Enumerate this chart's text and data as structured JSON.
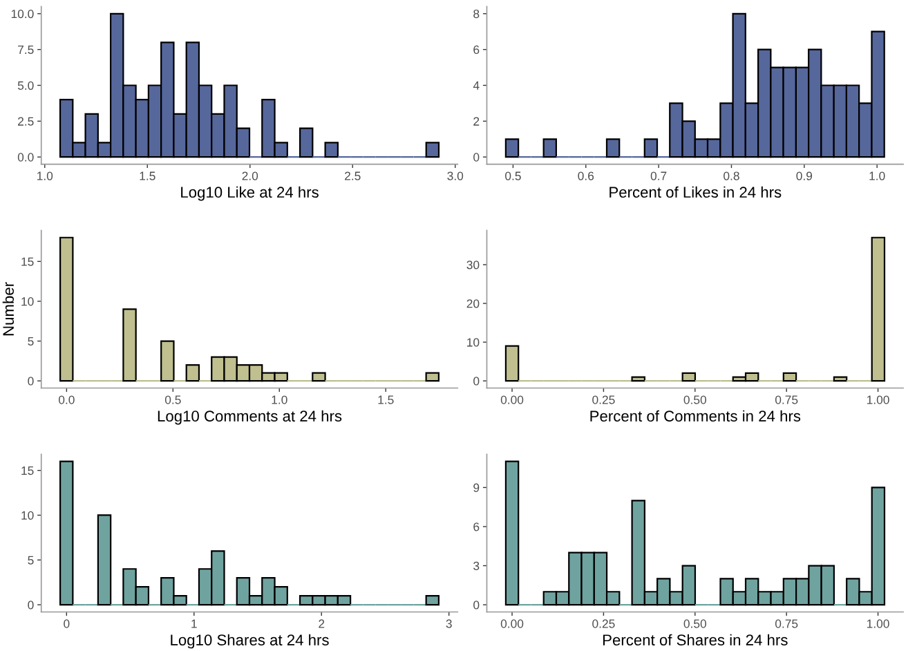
{
  "chart_data": [
    {
      "type": "histogram",
      "xlabel": "Log10 Like at 24 hrs",
      "color": "#56679c",
      "bins": [
        1.075,
        1.1365,
        1.198,
        1.2595,
        1.321,
        1.3825,
        1.444,
        1.5055,
        1.567,
        1.6285,
        1.69,
        1.7515,
        1.813,
        1.8745,
        1.936,
        1.9975,
        2.059,
        2.1205,
        2.182,
        2.2435,
        2.305,
        2.3665,
        2.428,
        2.4895,
        2.551,
        2.6125,
        2.674,
        2.7355,
        2.797,
        2.8585,
        2.92
      ],
      "values": [
        4,
        1,
        3,
        1,
        10,
        5,
        4,
        5,
        8,
        3,
        8,
        5,
        3,
        5,
        2,
        0,
        4,
        1,
        0,
        2,
        0,
        1,
        0,
        0,
        0,
        0,
        0,
        0,
        0,
        1
      ],
      "xlim": [
        0.983,
        3.012
      ],
      "xticks": [
        {
          "value": 1,
          "label": "1.0"
        },
        {
          "value": 1.5,
          "label": "1.5"
        },
        {
          "value": 2,
          "label": "2.0"
        },
        {
          "value": 2.5,
          "label": "2.5"
        },
        {
          "value": 3,
          "label": "3.0"
        }
      ],
      "ylim": [
        -0.5,
        10.5
      ],
      "yticks": [
        {
          "value": 0,
          "label": "0.0"
        },
        {
          "value": 2.5,
          "label": "2.5"
        },
        {
          "value": 5,
          "label": "5.0"
        },
        {
          "value": 7.5,
          "label": "7.5"
        },
        {
          "value": 10,
          "label": "10.0"
        }
      ]
    },
    {
      "type": "histogram",
      "xlabel": "Percent of Likes in 24 hrs",
      "color": "#56679c",
      "bins": [
        0.49,
        0.5073,
        0.5247,
        0.542,
        0.5593,
        0.5767,
        0.594,
        0.6113,
        0.6287,
        0.646,
        0.6633,
        0.6807,
        0.698,
        0.7153,
        0.7327,
        0.75,
        0.7673,
        0.7847,
        0.802,
        0.8193,
        0.8367,
        0.854,
        0.8713,
        0.8887,
        0.906,
        0.9233,
        0.9407,
        0.958,
        0.9753,
        0.9927,
        1.01
      ],
      "values": [
        1,
        0,
        0,
        1,
        0,
        0,
        0,
        0,
        1,
        0,
        0,
        1,
        0,
        3,
        2,
        1,
        1,
        3,
        8,
        3,
        6,
        5,
        5,
        5,
        6,
        4,
        4,
        4,
        3,
        7
      ],
      "xlim": [
        0.464,
        1.036
      ],
      "xticks": [
        0.5,
        0.6,
        0.7,
        0.8,
        0.9,
        {
          "value": 1,
          "label": "1.0"
        }
      ],
      "ylim": [
        -0.4,
        8.4
      ],
      "yticks": [
        0,
        2,
        4,
        6,
        8
      ]
    },
    {
      "type": "histogram",
      "xlabel": "Log10 Comments at 24 hrs",
      "ylabel": "Number",
      "color": "#bfbf90",
      "bins": [
        -0.03,
        0.0293,
        0.0886,
        0.1479,
        0.2072,
        0.2665,
        0.3258,
        0.3851,
        0.4444,
        0.5037,
        0.563,
        0.6223,
        0.6816,
        0.7409,
        0.8002,
        0.8595,
        0.9188,
        0.9781,
        1.0374,
        1.0967,
        1.156,
        1.2153,
        1.2746,
        1.3339,
        1.3932,
        1.4525,
        1.5118,
        1.5711,
        1.6304,
        1.6897,
        1.749
      ],
      "values": [
        18,
        0,
        0,
        0,
        0,
        9,
        0,
        0,
        5,
        0,
        2,
        0,
        3,
        3,
        2,
        2,
        1,
        1,
        0,
        0,
        1,
        0,
        0,
        0,
        0,
        0,
        0,
        0,
        0,
        1
      ],
      "xlim": [
        -0.119,
        1.838
      ],
      "xticks": [
        {
          "value": 0,
          "label": "0.0"
        },
        0.5,
        {
          "value": 1,
          "label": "1.0"
        },
        1.5
      ],
      "ylim": [
        -0.9,
        18.9
      ],
      "yticks": [
        0,
        5,
        10,
        15
      ]
    },
    {
      "type": "histogram",
      "xlabel": "Percent of Comments in 24 hrs",
      "color": "#bfbf90",
      "bins": [
        -0.0172,
        0.0173,
        0.0518,
        0.0863,
        0.1208,
        0.1553,
        0.1898,
        0.2243,
        0.2588,
        0.2933,
        0.3278,
        0.3623,
        0.3968,
        0.4313,
        0.4658,
        0.5003,
        0.5348,
        0.5693,
        0.6038,
        0.6383,
        0.6728,
        0.7073,
        0.7418,
        0.7763,
        0.8108,
        0.8453,
        0.8798,
        0.9143,
        0.9488,
        0.9833,
        1.0178
      ],
      "values": [
        9,
        0,
        0,
        0,
        0,
        0,
        0,
        0,
        0,
        0,
        1,
        0,
        0,
        0,
        2,
        0,
        0,
        0,
        1,
        2,
        0,
        0,
        2,
        0,
        0,
        0,
        1,
        0,
        0,
        37
      ],
      "xlim": [
        -0.069,
        1.069
      ],
      "xticks": [
        {
          "value": 0,
          "label": "0.00"
        },
        0.25,
        {
          "value": 0.5,
          "label": "0.50"
        },
        0.75,
        {
          "value": 1,
          "label": "1.00"
        }
      ],
      "ylim": [
        -1.85,
        38.85
      ],
      "yticks": [
        0,
        10,
        20,
        30
      ]
    },
    {
      "type": "histogram",
      "xlabel": "Log10 Shares at 24 hrs",
      "color": "#6fa3a0",
      "bins": [
        -0.05,
        0.049,
        0.148,
        0.247,
        0.346,
        0.445,
        0.544,
        0.643,
        0.742,
        0.841,
        0.94,
        1.039,
        1.138,
        1.237,
        1.336,
        1.435,
        1.534,
        1.633,
        1.732,
        1.831,
        1.93,
        2.029,
        2.128,
        2.227,
        2.326,
        2.425,
        2.524,
        2.623,
        2.722,
        2.821,
        2.92
      ],
      "values": [
        16,
        0,
        0,
        10,
        0,
        4,
        2,
        0,
        3,
        1,
        0,
        4,
        6,
        0,
        3,
        1,
        3,
        2,
        0,
        1,
        1,
        1,
        1,
        0,
        0,
        0,
        0,
        0,
        0,
        1
      ],
      "xlim": [
        -0.1985,
        3.0685
      ],
      "xticks": [
        0,
        1,
        2,
        3
      ],
      "ylim": [
        -0.8,
        16.8
      ],
      "yticks": [
        0,
        5,
        10,
        15
      ]
    },
    {
      "type": "histogram",
      "xlabel": "Percent of Shares in 24 hrs",
      "color": "#6fa3a0",
      "bins": [
        -0.0172,
        0.0173,
        0.0518,
        0.0863,
        0.1208,
        0.1553,
        0.1898,
        0.2243,
        0.2588,
        0.2933,
        0.3278,
        0.3623,
        0.3968,
        0.4313,
        0.4658,
        0.5003,
        0.5348,
        0.5693,
        0.6038,
        0.6383,
        0.6728,
        0.7073,
        0.7418,
        0.7763,
        0.8108,
        0.8453,
        0.8798,
        0.9143,
        0.9488,
        0.9833,
        1.0178
      ],
      "values": [
        11,
        0,
        0,
        1,
        1,
        4,
        4,
        4,
        1,
        0,
        8,
        1,
        2,
        1,
        3,
        0,
        0,
        2,
        1,
        2,
        1,
        1,
        2,
        2,
        3,
        3,
        0,
        2,
        1,
        9
      ],
      "xlim": [
        -0.069,
        1.069
      ],
      "xticks": [
        {
          "value": 0,
          "label": "0.00"
        },
        0.25,
        {
          "value": 0.5,
          "label": "0.50"
        },
        0.75,
        {
          "value": 1,
          "label": "1.00"
        }
      ],
      "ylim": [
        -0.55,
        11.55
      ],
      "yticks": [
        0,
        3,
        6,
        9
      ]
    }
  ]
}
